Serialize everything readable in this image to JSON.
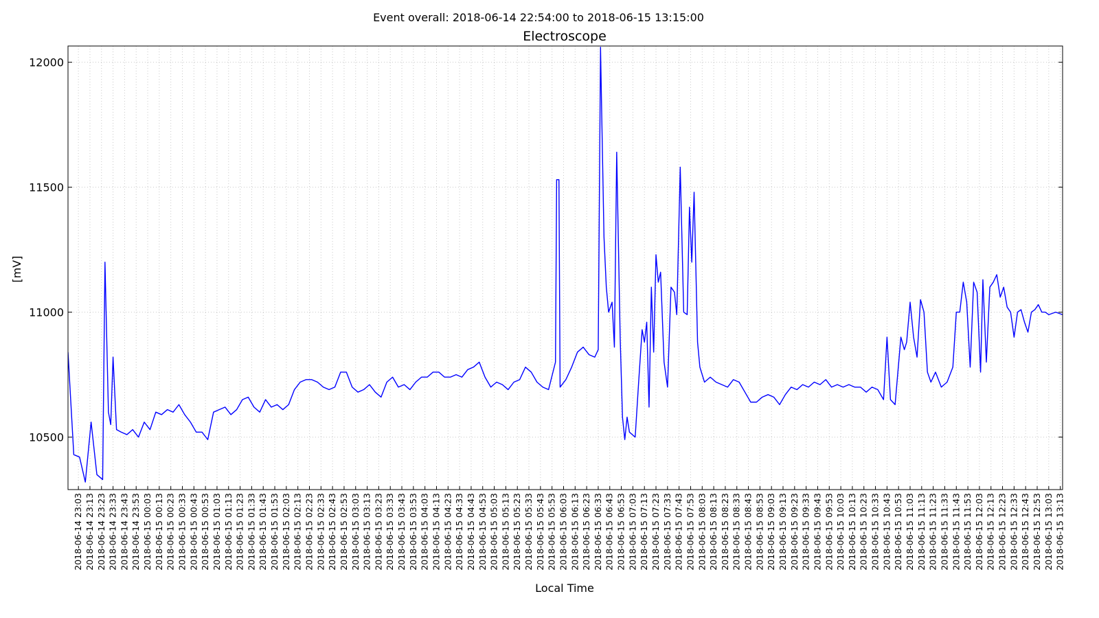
{
  "chart_data": {
    "type": "line",
    "suptitle": "Event overall: 2018-06-14 22:54:00 to 2018-06-15 13:15:00",
    "title": "Electroscope",
    "xlabel": "Local Time",
    "ylabel": "[mV]",
    "color": "#0000ff",
    "grid": true,
    "xlim": [
      "2018-06-14 22:54",
      "2018-06-15 13:15"
    ],
    "ylim": [
      10290,
      12065
    ],
    "yticks": [
      10500,
      11000,
      11500,
      12000
    ],
    "xticks": [
      "2018-06-14 23:03",
      "2018-06-14 23:13",
      "2018-06-14 23:23",
      "2018-06-14 23:33",
      "2018-06-14 23:43",
      "2018-06-14 23:53",
      "2018-06-15 00:03",
      "2018-06-15 00:13",
      "2018-06-15 00:23",
      "2018-06-15 00:33",
      "2018-06-15 00:43",
      "2018-06-15 00:53",
      "2018-06-15 01:03",
      "2018-06-15 01:13",
      "2018-06-15 01:23",
      "2018-06-15 01:33",
      "2018-06-15 01:43",
      "2018-06-15 01:53",
      "2018-06-15 02:03",
      "2018-06-15 02:13",
      "2018-06-15 02:23",
      "2018-06-15 02:33",
      "2018-06-15 02:43",
      "2018-06-15 02:53",
      "2018-06-15 03:03",
      "2018-06-15 03:13",
      "2018-06-15 03:23",
      "2018-06-15 03:33",
      "2018-06-15 03:43",
      "2018-06-15 03:53",
      "2018-06-15 04:03",
      "2018-06-15 04:13",
      "2018-06-15 04:23",
      "2018-06-15 04:33",
      "2018-06-15 04:43",
      "2018-06-15 04:53",
      "2018-06-15 05:03",
      "2018-06-15 05:13",
      "2018-06-15 05:23",
      "2018-06-15 05:33",
      "2018-06-15 05:43",
      "2018-06-15 05:53",
      "2018-06-15 06:03",
      "2018-06-15 06:13",
      "2018-06-15 06:23",
      "2018-06-15 06:33",
      "2018-06-15 06:43",
      "2018-06-15 06:53",
      "2018-06-15 07:03",
      "2018-06-15 07:13",
      "2018-06-15 07:23",
      "2018-06-15 07:33",
      "2018-06-15 07:43",
      "2018-06-15 07:53",
      "2018-06-15 08:03",
      "2018-06-15 08:13",
      "2018-06-15 08:23",
      "2018-06-15 08:33",
      "2018-06-15 08:43",
      "2018-06-15 08:53",
      "2018-06-15 09:03",
      "2018-06-15 09:13",
      "2018-06-15 09:23",
      "2018-06-15 09:33",
      "2018-06-15 09:43",
      "2018-06-15 09:53",
      "2018-06-15 10:03",
      "2018-06-15 10:13",
      "2018-06-15 10:23",
      "2018-06-15 10:33",
      "2018-06-15 10:43",
      "2018-06-15 10:53",
      "2018-06-15 11:03",
      "2018-06-15 11:13",
      "2018-06-15 11:23",
      "2018-06-15 11:33",
      "2018-06-15 11:43",
      "2018-06-15 11:53",
      "2018-06-15 12:03",
      "2018-06-15 12:13",
      "2018-06-15 12:23",
      "2018-06-15 12:33",
      "2018-06-15 12:43",
      "2018-06-15 12:53",
      "2018-06-15 13:03",
      "2018-06-15 13:13"
    ],
    "x": [
      "2018-06-14 22:54",
      "2018-06-14 22:59",
      "2018-06-14 23:04",
      "2018-06-14 23:09",
      "2018-06-14 23:14",
      "2018-06-14 23:19",
      "2018-06-14 23:24",
      "2018-06-14 23:26",
      "2018-06-14 23:29",
      "2018-06-14 23:31",
      "2018-06-14 23:33",
      "2018-06-14 23:36",
      "2018-06-14 23:40",
      "2018-06-14 23:45",
      "2018-06-14 23:50",
      "2018-06-14 23:55",
      "2018-06-15 00:00",
      "2018-06-15 00:05",
      "2018-06-15 00:10",
      "2018-06-15 00:15",
      "2018-06-15 00:20",
      "2018-06-15 00:25",
      "2018-06-15 00:30",
      "2018-06-15 00:35",
      "2018-06-15 00:40",
      "2018-06-15 00:45",
      "2018-06-15 00:50",
      "2018-06-15 00:55",
      "2018-06-15 01:00",
      "2018-06-15 01:05",
      "2018-06-15 01:10",
      "2018-06-15 01:15",
      "2018-06-15 01:20",
      "2018-06-15 01:25",
      "2018-06-15 01:30",
      "2018-06-15 01:35",
      "2018-06-15 01:40",
      "2018-06-15 01:45",
      "2018-06-15 01:50",
      "2018-06-15 01:55",
      "2018-06-15 02:00",
      "2018-06-15 02:05",
      "2018-06-15 02:10",
      "2018-06-15 02:15",
      "2018-06-15 02:20",
      "2018-06-15 02:25",
      "2018-06-15 02:30",
      "2018-06-15 02:35",
      "2018-06-15 02:40",
      "2018-06-15 02:45",
      "2018-06-15 02:50",
      "2018-06-15 02:55",
      "2018-06-15 03:00",
      "2018-06-15 03:05",
      "2018-06-15 03:10",
      "2018-06-15 03:15",
      "2018-06-15 03:20",
      "2018-06-15 03:25",
      "2018-06-15 03:30",
      "2018-06-15 03:35",
      "2018-06-15 03:40",
      "2018-06-15 03:45",
      "2018-06-15 03:50",
      "2018-06-15 03:55",
      "2018-06-15 04:00",
      "2018-06-15 04:05",
      "2018-06-15 04:10",
      "2018-06-15 04:15",
      "2018-06-15 04:20",
      "2018-06-15 04:25",
      "2018-06-15 04:30",
      "2018-06-15 04:35",
      "2018-06-15 04:40",
      "2018-06-15 04:45",
      "2018-06-15 04:50",
      "2018-06-15 04:55",
      "2018-06-15 05:00",
      "2018-06-15 05:05",
      "2018-06-15 05:10",
      "2018-06-15 05:15",
      "2018-06-15 05:20",
      "2018-06-15 05:25",
      "2018-06-15 05:30",
      "2018-06-15 05:35",
      "2018-06-15 05:40",
      "2018-06-15 05:45",
      "2018-06-15 05:50",
      "2018-06-15 05:56",
      "2018-06-15 05:57",
      "2018-06-15 05:59",
      "2018-06-15 06:00",
      "2018-06-15 06:05",
      "2018-06-15 06:10",
      "2018-06-15 06:15",
      "2018-06-15 06:20",
      "2018-06-15 06:25",
      "2018-06-15 06:30",
      "2018-06-15 06:33",
      "2018-06-15 06:35",
      "2018-06-15 06:36",
      "2018-06-15 06:38",
      "2018-06-15 06:40",
      "2018-06-15 06:42",
      "2018-06-15 06:45",
      "2018-06-15 06:47",
      "2018-06-15 06:49",
      "2018-06-15 06:52",
      "2018-06-15 06:54",
      "2018-06-15 06:56",
      "2018-06-15 06:58",
      "2018-06-15 07:00",
      "2018-06-15 07:05",
      "2018-06-15 07:08",
      "2018-06-15 07:11",
      "2018-06-15 07:13",
      "2018-06-15 07:15",
      "2018-06-15 07:17",
      "2018-06-15 07:19",
      "2018-06-15 07:21",
      "2018-06-15 07:23",
      "2018-06-15 07:25",
      "2018-06-15 07:27",
      "2018-06-15 07:30",
      "2018-06-15 07:33",
      "2018-06-15 07:36",
      "2018-06-15 07:39",
      "2018-06-15 07:41",
      "2018-06-15 07:44",
      "2018-06-15 07:47",
      "2018-06-15 07:50",
      "2018-06-15 07:52",
      "2018-06-15 07:54",
      "2018-06-15 07:56",
      "2018-06-15 07:59",
      "2018-06-15 08:01",
      "2018-06-15 08:05",
      "2018-06-15 08:10",
      "2018-06-15 08:15",
      "2018-06-15 08:20",
      "2018-06-15 08:25",
      "2018-06-15 08:30",
      "2018-06-15 08:35",
      "2018-06-15 08:40",
      "2018-06-15 08:45",
      "2018-06-15 08:50",
      "2018-06-15 08:55",
      "2018-06-15 09:00",
      "2018-06-15 09:05",
      "2018-06-15 09:10",
      "2018-06-15 09:15",
      "2018-06-15 09:20",
      "2018-06-15 09:25",
      "2018-06-15 09:30",
      "2018-06-15 09:35",
      "2018-06-15 09:40",
      "2018-06-15 09:45",
      "2018-06-15 09:50",
      "2018-06-15 09:55",
      "2018-06-15 10:00",
      "2018-06-15 10:05",
      "2018-06-15 10:10",
      "2018-06-15 10:15",
      "2018-06-15 10:20",
      "2018-06-15 10:25",
      "2018-06-15 10:30",
      "2018-06-15 10:35",
      "2018-06-15 10:40",
      "2018-06-15 10:43",
      "2018-06-15 10:46",
      "2018-06-15 10:50",
      "2018-06-15 10:55",
      "2018-06-15 10:58",
      "2018-06-15 11:00",
      "2018-06-15 11:03",
      "2018-06-15 11:06",
      "2018-06-15 11:09",
      "2018-06-15 11:12",
      "2018-06-15 11:15",
      "2018-06-15 11:18",
      "2018-06-15 11:21",
      "2018-06-15 11:25",
      "2018-06-15 11:30",
      "2018-06-15 11:35",
      "2018-06-15 11:40",
      "2018-06-15 11:43",
      "2018-06-15 11:46",
      "2018-06-15 11:49",
      "2018-06-15 11:52",
      "2018-06-15 11:55",
      "2018-06-15 11:58",
      "2018-06-15 12:01",
      "2018-06-15 12:04",
      "2018-06-15 12:06",
      "2018-06-15 12:09",
      "2018-06-15 12:12",
      "2018-06-15 12:15",
      "2018-06-15 12:18",
      "2018-06-15 12:21",
      "2018-06-15 12:24",
      "2018-06-15 12:27",
      "2018-06-15 12:30",
      "2018-06-15 12:33",
      "2018-06-15 12:36",
      "2018-06-15 12:39",
      "2018-06-15 12:42",
      "2018-06-15 12:45",
      "2018-06-15 12:48",
      "2018-06-15 12:51",
      "2018-06-15 12:54",
      "2018-06-15 12:57",
      "2018-06-15 13:00",
      "2018-06-15 13:03",
      "2018-06-15 13:09",
      "2018-06-15 13:15"
    ],
    "values": [
      10840,
      10430,
      10420,
      10320,
      10560,
      10350,
      10330,
      11200,
      10600,
      10550,
      10820,
      10530,
      10520,
      10510,
      10530,
      10500,
      10560,
      10530,
      10600,
      10590,
      10610,
      10600,
      10630,
      10590,
      10560,
      10520,
      10520,
      10490,
      10600,
      10610,
      10620,
      10590,
      10610,
      10650,
      10660,
      10620,
      10600,
      10650,
      10620,
      10630,
      10610,
      10630,
      10690,
      10720,
      10730,
      10730,
      10720,
      10700,
      10690,
      10700,
      10760,
      10760,
      10700,
      10680,
      10690,
      10710,
      10680,
      10660,
      10720,
      10740,
      10700,
      10710,
      10690,
      10720,
      10740,
      10740,
      10760,
      10760,
      10740,
      10740,
      10750,
      10740,
      10770,
      10780,
      10800,
      10740,
      10700,
      10720,
      10710,
      10690,
      10720,
      10730,
      10780,
      10760,
      10720,
      10700,
      10690,
      10800,
      11530,
      11530,
      10700,
      10730,
      10780,
      10840,
      10860,
      10830,
      10820,
      10850,
      12060,
      11800,
      11300,
      11100,
      11000,
      11040,
      10860,
      11640,
      10900,
      10580,
      10490,
      10580,
      10520,
      10500,
      10720,
      10930,
      10880,
      10960,
      10620,
      11100,
      10840,
      11230,
      11120,
      11160,
      10800,
      10700,
      11100,
      11080,
      10990,
      11580,
      11000,
      10990,
      11420,
      11200,
      11480,
      10880,
      10780,
      10720,
      10740,
      10720,
      10710,
      10700,
      10730,
      10720,
      10680,
      10640,
      10640,
      10660,
      10670,
      10660,
      10630,
      10670,
      10700,
      10690,
      10710,
      10700,
      10720,
      10710,
      10730,
      10700,
      10710,
      10700,
      10710,
      10700,
      10700,
      10680,
      10700,
      10690,
      10650,
      10900,
      10650,
      10630,
      10900,
      10850,
      10880,
      11040,
      10900,
      10820,
      11050,
      11000,
      10760,
      10720,
      10760,
      10700,
      10720,
      10780,
      11000,
      11000,
      11120,
      11040,
      10780,
      11120,
      11080,
      10760,
      11130,
      10800,
      11100,
      11120,
      11150,
      11060,
      11100,
      11020,
      11000,
      10900,
      11000,
      11010,
      10960,
      10920,
      11000,
      11010,
      11030,
      11000,
      11000,
      10990,
      11000,
      10990
    ]
  }
}
